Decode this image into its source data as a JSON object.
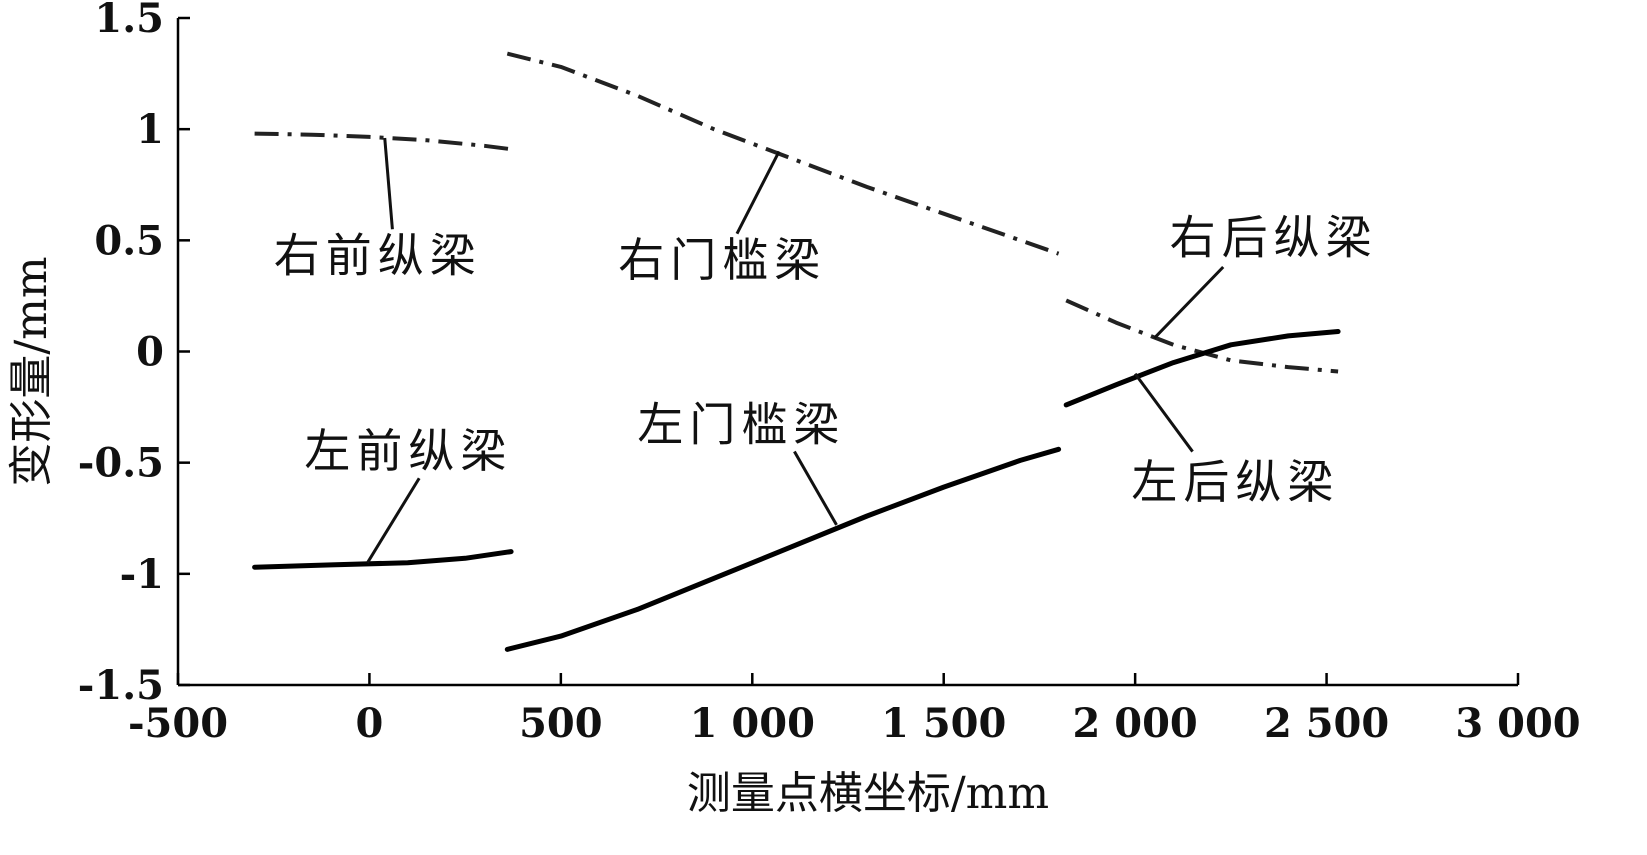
{
  "chart_data": {
    "type": "line",
    "xlabel": "测量点横坐标/mm",
    "ylabel": "变形量/mm",
    "xlim": [
      -500,
      3000
    ],
    "ylim": [
      -1.5,
      1.5
    ],
    "x_ticks": [
      {
        "value": -500,
        "label": "-500"
      },
      {
        "value": 0,
        "label": "0"
      },
      {
        "value": 500,
        "label": "500"
      },
      {
        "value": 1000,
        "label": "1 000"
      },
      {
        "value": 1500,
        "label": "1 500"
      },
      {
        "value": 2000,
        "label": "2 000"
      },
      {
        "value": 2500,
        "label": "2 500"
      },
      {
        "value": 3000,
        "label": "3 000"
      }
    ],
    "y_ticks": [
      {
        "value": 1.5,
        "label": "1.5"
      },
      {
        "value": 1,
        "label": "1"
      },
      {
        "value": 0.5,
        "label": "0.5"
      },
      {
        "value": 0,
        "label": "0"
      },
      {
        "value": -0.5,
        "label": "-0.5"
      },
      {
        "value": -1,
        "label": "-1"
      },
      {
        "value": -1.5,
        "label": "-1.5"
      }
    ],
    "series": [
      {
        "name": "右前纵梁",
        "style": "dashdot",
        "color": "#222222",
        "points": [
          [
            -300,
            0.98
          ],
          [
            -150,
            0.975
          ],
          [
            0,
            0.965
          ],
          [
            150,
            0.95
          ],
          [
            300,
            0.925
          ],
          [
            370,
            0.91
          ]
        ],
        "label_at": [
          -250,
          0.36
        ],
        "leader": [
          [
            40,
            0.96
          ],
          [
            60,
            0.55
          ]
        ]
      },
      {
        "name": "右门槛梁",
        "style": "dashdot",
        "color": "#222222",
        "points": [
          [
            360,
            1.34
          ],
          [
            500,
            1.28
          ],
          [
            700,
            1.15
          ],
          [
            900,
            1.0
          ],
          [
            1100,
            0.87
          ],
          [
            1300,
            0.74
          ],
          [
            1500,
            0.62
          ],
          [
            1700,
            0.5
          ],
          [
            1800,
            0.44
          ]
        ],
        "label_at": [
          650,
          0.34
        ],
        "leader": [
          [
            1070,
            0.9
          ],
          [
            960,
            0.53
          ]
        ]
      },
      {
        "name": "右后纵梁",
        "style": "dashdot",
        "color": "#222222",
        "points": [
          [
            1820,
            0.23
          ],
          [
            1950,
            0.13
          ],
          [
            2100,
            0.03
          ],
          [
            2250,
            -0.04
          ],
          [
            2400,
            -0.07
          ],
          [
            2530,
            -0.09
          ]
        ],
        "label_at": [
          2090,
          0.44
        ],
        "leader": [
          [
            2050,
            0.06
          ],
          [
            2230,
            0.38
          ]
        ]
      },
      {
        "name": "左前纵梁",
        "style": "solid",
        "color": "#000000",
        "points": [
          [
            -300,
            -0.97
          ],
          [
            -100,
            -0.96
          ],
          [
            100,
            -0.95
          ],
          [
            250,
            -0.93
          ],
          [
            370,
            -0.9
          ]
        ],
        "label_at": [
          -170,
          -0.52
        ],
        "leader": [
          [
            -5,
            -0.95
          ],
          [
            130,
            -0.57
          ]
        ]
      },
      {
        "name": "左门槛梁",
        "style": "solid",
        "color": "#000000",
        "points": [
          [
            360,
            -1.34
          ],
          [
            500,
            -1.28
          ],
          [
            700,
            -1.16
          ],
          [
            900,
            -1.02
          ],
          [
            1100,
            -0.88
          ],
          [
            1300,
            -0.74
          ],
          [
            1500,
            -0.61
          ],
          [
            1700,
            -0.49
          ],
          [
            1800,
            -0.44
          ]
        ],
        "label_at": [
          700,
          -0.4
        ],
        "leader": [
          [
            1220,
            -0.78
          ],
          [
            1110,
            -0.45
          ]
        ]
      },
      {
        "name": "左后纵梁",
        "style": "solid",
        "color": "#000000",
        "points": [
          [
            1820,
            -0.24
          ],
          [
            1950,
            -0.15
          ],
          [
            2100,
            -0.05
          ],
          [
            2250,
            0.03
          ],
          [
            2400,
            0.07
          ],
          [
            2530,
            0.09
          ]
        ],
        "label_at": [
          1990,
          -0.66
        ],
        "leader": [
          [
            2000,
            -0.1
          ],
          [
            2150,
            -0.45
          ]
        ]
      }
    ]
  }
}
